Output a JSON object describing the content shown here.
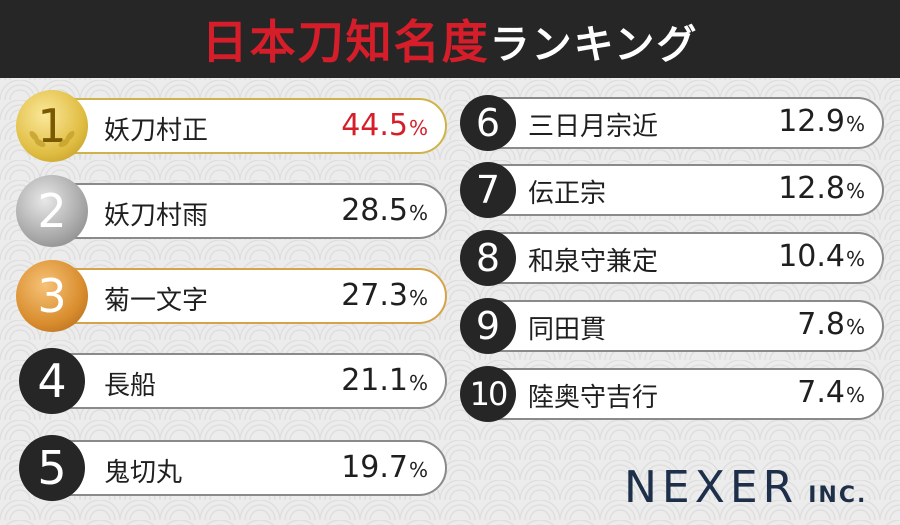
{
  "header": {
    "title_main": "日本刀知名度",
    "title_sub": "ランキング"
  },
  "colors": {
    "header_bg": "#262626",
    "title_red": "#d51e2a",
    "gold": "#e0bd43",
    "silver": "#a8a8a8",
    "bronze": "#d98d2e",
    "badge_dark": "#262626",
    "logo": "#1e2f4a"
  },
  "chart_data": {
    "type": "table",
    "unit": "%",
    "rows": [
      {
        "rank": "1",
        "name": "妖刀村正",
        "value": 44.5,
        "value_text": "44.5"
      },
      {
        "rank": "2",
        "name": "妖刀村雨",
        "value": 28.5,
        "value_text": "28.5"
      },
      {
        "rank": "3",
        "name": "菊一文字",
        "value": 27.3,
        "value_text": "27.3"
      },
      {
        "rank": "4",
        "name": "長船",
        "value": 21.1,
        "value_text": "21.1"
      },
      {
        "rank": "5",
        "name": "鬼切丸",
        "value": 19.7,
        "value_text": "19.7"
      },
      {
        "rank": "6",
        "name": "三日月宗近",
        "value": 12.9,
        "value_text": "12.9"
      },
      {
        "rank": "7",
        "name": "伝正宗",
        "value": 12.8,
        "value_text": "12.8"
      },
      {
        "rank": "8",
        "name": "和泉守兼定",
        "value": 10.4,
        "value_text": "10.4"
      },
      {
        "rank": "9",
        "name": "同田貫",
        "value": 7.8,
        "value_text": "7.8"
      },
      {
        "rank": "10",
        "name": "陸奥守吉行",
        "value": 7.4,
        "value_text": "7.4"
      }
    ]
  },
  "logo": {
    "main": "NEXER",
    "sub": "INC."
  }
}
